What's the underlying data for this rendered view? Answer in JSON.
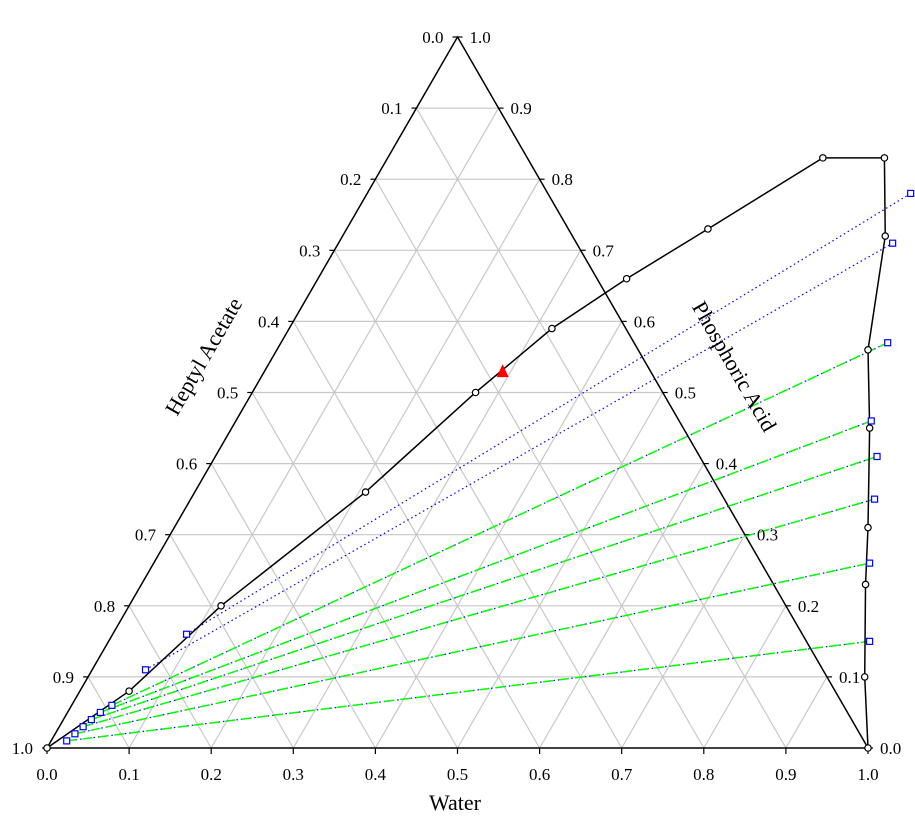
{
  "chart_data": {
    "type": "ternary",
    "axes": {
      "bottom": {
        "label": "Water",
        "ticks": [
          "0.0",
          "0.1",
          "0.2",
          "0.3",
          "0.4",
          "0.5",
          "0.6",
          "0.7",
          "0.8",
          "0.9",
          "1.0"
        ]
      },
      "left": {
        "label": "Heptyl Acetate",
        "ticks": [
          "0.0",
          "0.1",
          "0.2",
          "0.3",
          "0.4",
          "0.5",
          "0.6",
          "0.7",
          "0.8",
          "0.9",
          "1.0"
        ]
      },
      "right": {
        "label": "Phosphoric Acid",
        "ticks": [
          "1.0",
          "0.9",
          "0.8",
          "0.7",
          "0.6",
          "0.5",
          "0.4",
          "0.3",
          "0.2",
          "0.1",
          "0.0"
        ]
      }
    },
    "grid": true,
    "grid_step": 0.1,
    "binodal_curve": {
      "marker": "open-circle",
      "color": "#000000",
      "points": [
        {
          "water": 0.0,
          "acid": 0.0
        },
        {
          "water": 0.06,
          "acid": 0.08
        },
        {
          "water": 0.112,
          "acid": 0.2
        },
        {
          "water": 0.208,
          "acid": 0.36
        },
        {
          "water": 0.272,
          "acid": 0.5
        },
        {
          "water": 0.32,
          "acid": 0.59
        },
        {
          "water": 0.376,
          "acid": 0.66
        },
        {
          "water": 0.44,
          "acid": 0.73
        },
        {
          "water": 0.53,
          "acid": 0.83
        },
        {
          "water": 0.605,
          "acid": 0.83
        },
        {
          "water": 0.661,
          "acid": 0.72
        },
        {
          "water": 0.72,
          "acid": 0.56
        },
        {
          "water": 0.777,
          "acid": 0.45
        },
        {
          "water": 0.845,
          "acid": 0.31
        },
        {
          "water": 0.882,
          "acid": 0.23
        },
        {
          "water": 0.946,
          "acid": 0.1
        },
        {
          "water": 1.0,
          "acid": 0.0
        }
      ]
    },
    "experimental_tie_lines": {
      "marker": "open-square",
      "color": "#0000ff",
      "style": "dotted",
      "pairs": [
        [
          {
            "water": 0.019,
            "acid": 0.01
          },
          {
            "water": 0.927,
            "acid": 0.15
          }
        ],
        [
          {
            "water": 0.024,
            "acid": 0.02
          },
          {
            "water": 0.872,
            "acid": 0.26
          }
        ],
        [
          {
            "water": 0.029,
            "acid": 0.03
          },
          {
            "water": 0.833,
            "acid": 0.35
          }
        ],
        [
          {
            "water": 0.034,
            "acid": 0.04
          },
          {
            "water": 0.806,
            "acid": 0.41
          }
        ],
        [
          {
            "water": 0.04,
            "acid": 0.05
          },
          {
            "water": 0.774,
            "acid": 0.46
          }
        ],
        [
          {
            "water": 0.049,
            "acid": 0.06
          },
          {
            "water": 0.739,
            "acid": 0.57
          }
        ],
        [
          {
            "water": 0.065,
            "acid": 0.11
          },
          {
            "water": 0.675,
            "acid": 0.71
          }
        ],
        [
          {
            "water": 0.09,
            "acid": 0.16
          },
          {
            "water": 0.662,
            "acid": 0.78
          }
        ]
      ]
    },
    "calculated_tie_lines": {
      "color": "#00ff00",
      "style": "dashed",
      "pairs": [
        [
          {
            "water": 0.019,
            "acid": 0.01
          },
          {
            "water": 0.927,
            "acid": 0.15
          }
        ],
        [
          {
            "water": 0.024,
            "acid": 0.02
          },
          {
            "water": 0.872,
            "acid": 0.26
          }
        ],
        [
          {
            "water": 0.029,
            "acid": 0.03
          },
          {
            "water": 0.833,
            "acid": 0.35
          }
        ],
        [
          {
            "water": 0.034,
            "acid": 0.04
          },
          {
            "water": 0.806,
            "acid": 0.41
          }
        ],
        [
          {
            "water": 0.04,
            "acid": 0.05
          },
          {
            "water": 0.774,
            "acid": 0.46
          }
        ],
        [
          {
            "water": 0.049,
            "acid": 0.06
          },
          {
            "water": 0.739,
            "acid": 0.57
          }
        ]
      ]
    },
    "plait_point": {
      "marker": "filled-triangle",
      "color": "#ff0000",
      "water": 0.29,
      "acid": 0.53
    }
  }
}
